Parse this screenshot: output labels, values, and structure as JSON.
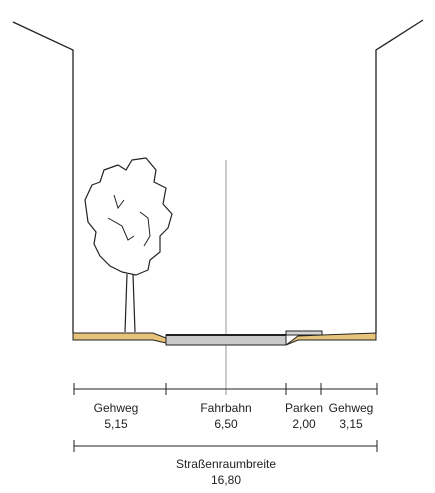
{
  "segments": [
    {
      "name": "Gehweg",
      "width": "5,15"
    },
    {
      "name": "Fahrbahn",
      "width": "6,50"
    },
    {
      "name": "Parken",
      "width": "2,00"
    },
    {
      "name": "Gehweg",
      "width": "3,15"
    }
  ],
  "total": {
    "name": "Straßenraumbreite",
    "width": "16,80"
  },
  "colors": {
    "sidewalk": "#e6c27a",
    "roadway": "#c9c9c9",
    "lines": "#222222",
    "centerline": "#9a9a9a"
  }
}
